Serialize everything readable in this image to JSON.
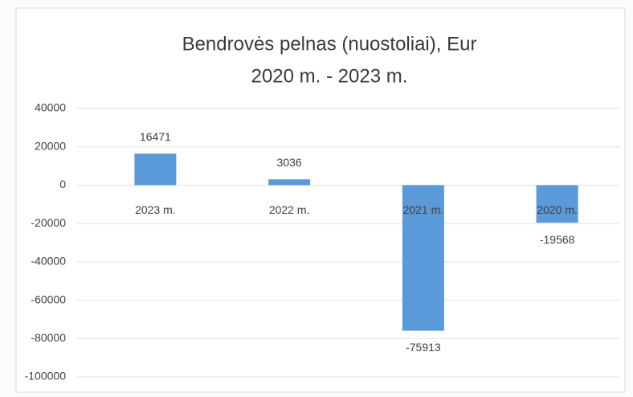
{
  "chart_data": {
    "type": "bar",
    "title": "Bendrovės pelnas (nuostoliai), Eur",
    "subtitle": "2020 m. - 2023 m.",
    "categories": [
      "2023 m.",
      "2022 m.",
      "2021 m.",
      "2020 m."
    ],
    "values": [
      16471,
      3036,
      -75913,
      -19568
    ],
    "color": "#5a9ad8",
    "ylim": [
      -100000,
      40000
    ],
    "yticks": [
      -100000,
      -80000,
      -60000,
      -40000,
      -20000,
      0,
      20000,
      40000
    ],
    "grid": true
  }
}
